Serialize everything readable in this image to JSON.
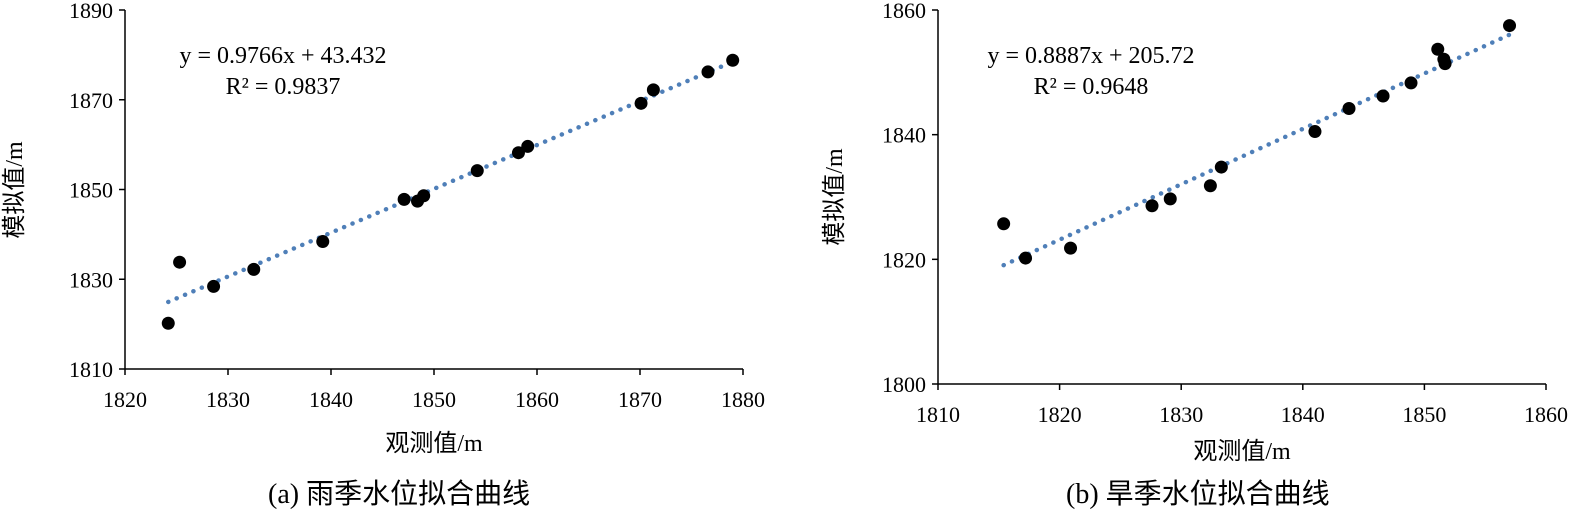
{
  "colors": {
    "trendline": "#4f7fb8",
    "points": "#000000",
    "axis": "#000000"
  },
  "chart_data": [
    {
      "type": "scatter",
      "caption": "(a)  雨季水位拟合曲线",
      "xlabel": "观测值/m",
      "ylabel": "模拟值/m",
      "xlim": [
        1820,
        1880
      ],
      "ylim": [
        1810,
        1890
      ],
      "xticks": [
        "1820",
        "1830",
        "1840",
        "1850",
        "1860",
        "1870",
        "1880"
      ],
      "yticks": [
        "1810",
        "1830",
        "1850",
        "1870",
        "1890"
      ],
      "equation": "y = 0.9766x + 43.432",
      "r2": "R² = 0.9837",
      "trendline": {
        "slope": 0.9766,
        "intercept": 43.432,
        "x_range": [
          1824.2,
          1879.2
        ]
      },
      "points": [
        {
          "x": 1824.2,
          "y": 1820.2
        },
        {
          "x": 1825.3,
          "y": 1833.8
        },
        {
          "x": 1828.6,
          "y": 1828.4
        },
        {
          "x": 1832.5,
          "y": 1832.2
        },
        {
          "x": 1839.2,
          "y": 1838.4
        },
        {
          "x": 1847.1,
          "y": 1847.8
        },
        {
          "x": 1848.4,
          "y": 1847.4
        },
        {
          "x": 1849.0,
          "y": 1848.6
        },
        {
          "x": 1854.2,
          "y": 1854.2
        },
        {
          "x": 1858.2,
          "y": 1858.2
        },
        {
          "x": 1859.1,
          "y": 1859.6
        },
        {
          "x": 1870.1,
          "y": 1869.2
        },
        {
          "x": 1871.3,
          "y": 1872.2
        },
        {
          "x": 1876.6,
          "y": 1876.2
        },
        {
          "x": 1879.0,
          "y": 1878.8
        }
      ]
    },
    {
      "type": "scatter",
      "caption": "(b)  旱季水位拟合曲线",
      "xlabel": "观测值/m",
      "ylabel": "模拟值/m",
      "xlim": [
        1810,
        1860
      ],
      "ylim": [
        1800,
        1860
      ],
      "xticks": [
        "1810",
        "1820",
        "1830",
        "1840",
        "1850",
        "1860"
      ],
      "yticks": [
        "1800",
        "1820",
        "1840",
        "1860"
      ],
      "equation": "y = 0.8887x + 205.72",
      "r2": "R² = 0.9648",
      "trendline": {
        "slope": 0.8887,
        "intercept": 205.72,
        "x_range": [
          1815.4,
          1857.0
        ]
      },
      "points": [
        {
          "x": 1815.4,
          "y": 1825.7
        },
        {
          "x": 1817.2,
          "y": 1820.2
        },
        {
          "x": 1820.9,
          "y": 1821.8
        },
        {
          "x": 1827.6,
          "y": 1828.6
        },
        {
          "x": 1829.1,
          "y": 1829.7
        },
        {
          "x": 1832.4,
          "y": 1831.8
        },
        {
          "x": 1833.3,
          "y": 1834.8
        },
        {
          "x": 1841.0,
          "y": 1840.5
        },
        {
          "x": 1843.8,
          "y": 1844.2
        },
        {
          "x": 1846.6,
          "y": 1846.2
        },
        {
          "x": 1848.9,
          "y": 1848.3
        },
        {
          "x": 1851.1,
          "y": 1853.7
        },
        {
          "x": 1851.6,
          "y": 1852.1
        },
        {
          "x": 1851.7,
          "y": 1851.4
        },
        {
          "x": 1857.0,
          "y": 1857.5
        }
      ]
    }
  ]
}
